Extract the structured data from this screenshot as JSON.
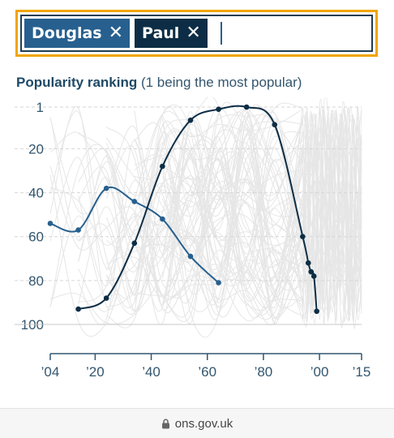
{
  "search": {
    "chips": [
      {
        "label": "Douglas",
        "remove": "✕"
      },
      {
        "label": "Paul",
        "remove": "✕"
      }
    ]
  },
  "title": {
    "bold": "Popularity ranking",
    "rest": " (1 being the most popular)"
  },
  "footer": {
    "url": "ons.gov.uk"
  },
  "colors": {
    "douglas": "#27608f",
    "paul": "#0c2d45",
    "background_lines": "#e6e6e6",
    "highlight": "#f0a500"
  },
  "chart_data": {
    "type": "line",
    "title": "Popularity ranking (1 being the most popular)",
    "xlabel": "",
    "ylabel": "",
    "x_domain": [
      1904,
      2015
    ],
    "y_domain": [
      1,
      100
    ],
    "y_inverted": true,
    "y_ticks": [
      {
        "value": 1,
        "label": "1"
      },
      {
        "value": 20,
        "label": "20"
      },
      {
        "value": 40,
        "label": "40"
      },
      {
        "value": 60,
        "label": "60"
      },
      {
        "value": 80,
        "label": "80"
      },
      {
        "value": 100,
        "label": "100"
      }
    ],
    "x_ticks": [
      {
        "value": 1904,
        "label": "’04"
      },
      {
        "value": 1920,
        "label": "’20"
      },
      {
        "value": 1940,
        "label": "’40"
      },
      {
        "value": 1960,
        "label": "’60"
      },
      {
        "value": 1980,
        "label": "’80"
      },
      {
        "value": 2000,
        "label": "’00"
      },
      {
        "value": 2015,
        "label": "’15"
      }
    ],
    "grid": true,
    "series": [
      {
        "name": "Douglas",
        "color": "#27608f",
        "x": [
          1904,
          1914,
          1924,
          1934,
          1944,
          1954,
          1964
        ],
        "y": [
          54,
          57,
          38,
          44,
          52,
          69,
          81
        ]
      },
      {
        "name": "Paul",
        "color": "#0c2d45",
        "x": [
          1914,
          1924,
          1934,
          1944,
          1954,
          1964,
          1974,
          1984,
          1994,
          1996,
          1997,
          1998,
          1999
        ],
        "y": [
          93,
          88,
          63,
          28,
          7,
          2,
          1,
          9,
          60,
          72,
          76,
          78,
          94
        ]
      }
    ]
  }
}
